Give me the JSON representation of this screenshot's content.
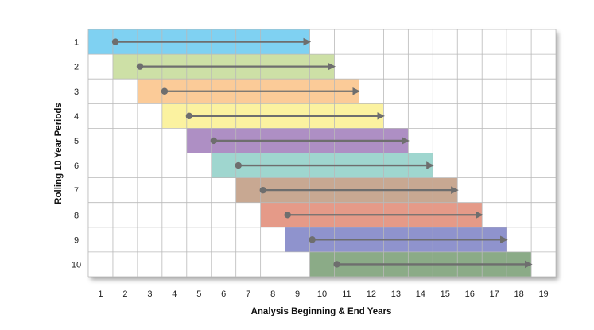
{
  "chart_data": {
    "type": "gantt",
    "xlabel": "Analysis Beginning & End Years",
    "ylabel": "Rolling 10 Year Periods",
    "x_ticks": [
      1,
      2,
      3,
      4,
      5,
      6,
      7,
      8,
      9,
      10,
      11,
      12,
      13,
      14,
      15,
      16,
      17,
      18,
      19
    ],
    "y_ticks": [
      1,
      2,
      3,
      4,
      5,
      6,
      7,
      8,
      9,
      10
    ],
    "xlim": [
      1,
      20
    ],
    "grid": true,
    "periods": [
      {
        "label": 1,
        "start": 1,
        "end": 10,
        "color": "#7fd1f2"
      },
      {
        "label": 2,
        "start": 2,
        "end": 11,
        "color": "#cde0a6"
      },
      {
        "label": 3,
        "start": 3,
        "end": 12,
        "color": "#fbcb98"
      },
      {
        "label": 4,
        "start": 4,
        "end": 13,
        "color": "#fbf2a0"
      },
      {
        "label": 5,
        "start": 5,
        "end": 14,
        "color": "#ae8fc4"
      },
      {
        "label": 6,
        "start": 6,
        "end": 15,
        "color": "#9fd6cf"
      },
      {
        "label": 7,
        "start": 7,
        "end": 16,
        "color": "#c8a892"
      },
      {
        "label": 8,
        "start": 8,
        "end": 17,
        "color": "#e59a88"
      },
      {
        "label": 9,
        "start": 9,
        "end": 18,
        "color": "#8f93cd"
      },
      {
        "label": 10,
        "start": 10,
        "end": 19,
        "color": "#8bab87"
      }
    ],
    "arrow_color": "#6e6e6e"
  }
}
